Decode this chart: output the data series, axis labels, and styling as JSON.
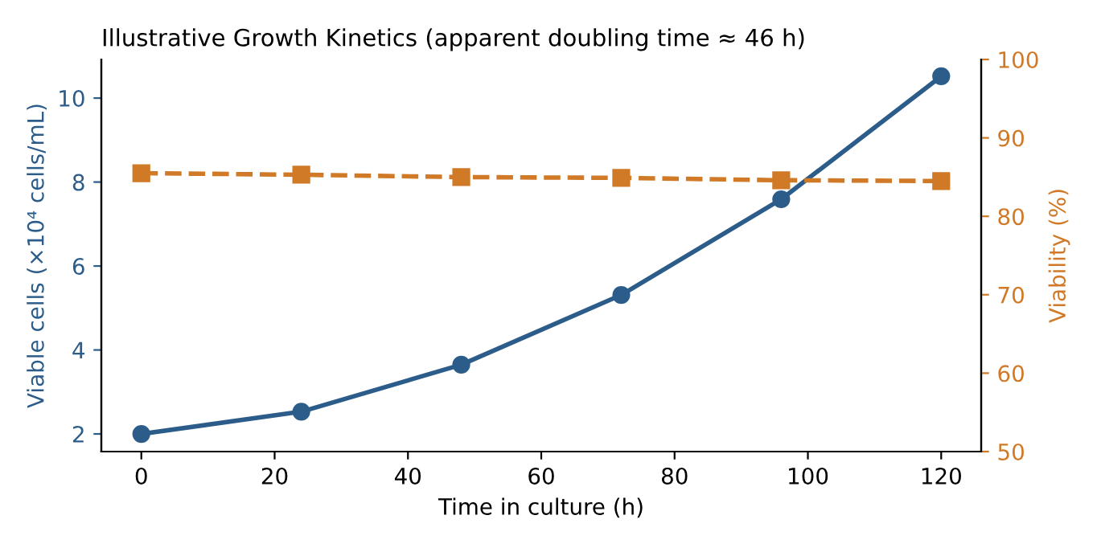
{
  "chart_data": {
    "type": "line",
    "title": "Illustrative Growth Kinetics (apparent doubling time ≈ 46 h)",
    "xlabel": "Time in culture (h)",
    "ylabel": "Viable cells (×10⁴ cells/mL)",
    "y2label": "Viability (%)",
    "x": [
      0,
      24,
      48,
      72,
      96,
      120
    ],
    "series": [
      {
        "color": "#2c5d8a",
        "values": [
          2.0,
          2.53,
          3.65,
          5.31,
          7.59,
          10.52
        ],
        "marker": "circle",
        "line_style": "solid"
      },
      {
        "color": "#d07a27",
        "values": [
          85.5,
          85.3,
          85.0,
          84.9,
          84.6,
          84.5
        ],
        "axis": "y2",
        "marker": "square",
        "line_style": "dashed"
      }
    ],
    "xlim": [
      -6,
      126
    ],
    "xticks": [
      0,
      20,
      40,
      60,
      80,
      100,
      120
    ],
    "ylim": [
      1.58,
      10.92
    ],
    "yticks": [
      2,
      4,
      6,
      8,
      10
    ],
    "y2lim": [
      50,
      100
    ],
    "y2ticks": [
      50,
      60,
      70,
      80,
      90,
      100
    ],
    "grid": false,
    "legend": false
  }
}
